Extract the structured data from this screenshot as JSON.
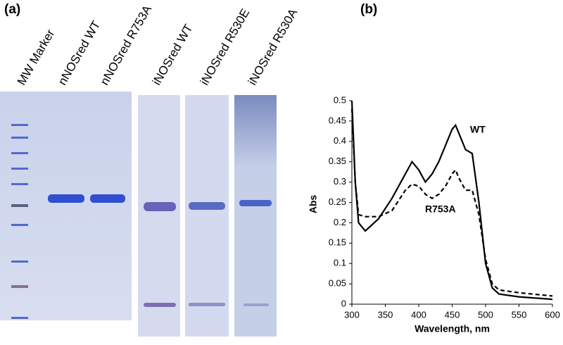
{
  "panels": [
    "(a)",
    "(b)"
  ],
  "gel": {
    "lanes": [
      "MW Marker",
      "nNOSred WT",
      "nNOSred R753A",
      "iNOSred WT",
      "iNOSred R530E",
      "iNOSred R530A"
    ]
  },
  "chart_data": {
    "type": "line",
    "xlabel": "Wavelength, nm",
    "ylabel": "Abs",
    "x": [
      300,
      305,
      310,
      320,
      340,
      360,
      380,
      390,
      400,
      410,
      420,
      430,
      440,
      450,
      455,
      460,
      470,
      480,
      490,
      500,
      510,
      520,
      550,
      600
    ],
    "series": [
      {
        "name": "WT",
        "color": "#000000",
        "line_style": "solid",
        "values": [
          0.5,
          0.3,
          0.2,
          0.18,
          0.21,
          0.26,
          0.32,
          0.35,
          0.33,
          0.3,
          0.32,
          0.35,
          0.39,
          0.43,
          0.44,
          0.42,
          0.38,
          0.37,
          0.25,
          0.1,
          0.04,
          0.025,
          0.018,
          0.012
        ]
      },
      {
        "name": "R753A",
        "color": "#000000",
        "line_style": "dashed",
        "values": [
          0.48,
          0.3,
          0.22,
          0.215,
          0.215,
          0.23,
          0.28,
          0.295,
          0.29,
          0.27,
          0.26,
          0.27,
          0.29,
          0.32,
          0.33,
          0.31,
          0.28,
          0.28,
          0.22,
          0.11,
          0.05,
          0.035,
          0.028,
          0.02
        ]
      }
    ],
    "xlim": [
      300,
      600
    ],
    "xticks": [
      300,
      350,
      400,
      450,
      500,
      550,
      600
    ],
    "ylim": [
      0,
      0.5
    ],
    "yticks": [
      0,
      0.05,
      0.1,
      0.15,
      0.2,
      0.25,
      0.3,
      0.35,
      0.4,
      0.45,
      0.5
    ]
  }
}
